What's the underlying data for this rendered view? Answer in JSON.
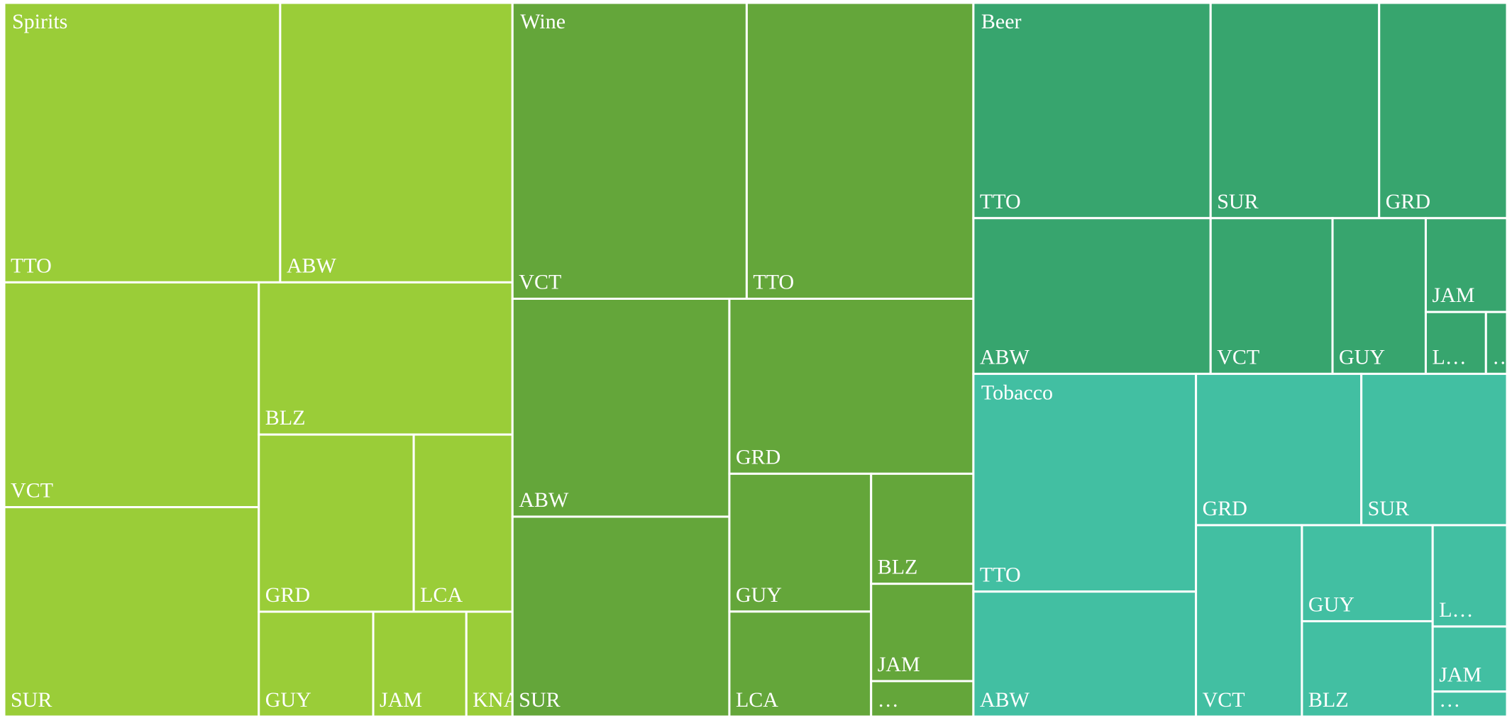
{
  "chart_data": {
    "type": "treemap",
    "series": [
      {
        "name": "Spirits",
        "color": "#9acd38",
        "labels": [
          "TTO",
          "ABW",
          "VCT",
          "SUR",
          "BLZ",
          "GRD",
          "LCA",
          "GUY",
          "JAM",
          "KNA"
        ],
        "values": [
          82.9,
          69.8,
          61.5,
          57.3,
          41.5,
          29.5,
          18.8,
          12.9,
          10.5,
          5.2
        ]
      },
      {
        "name": "Wine",
        "color": "#64a63a",
        "labels": [
          "VCT",
          "TTO",
          "ABW",
          "SUR",
          "GRD",
          "GUY",
          "LCA",
          "BLZ",
          "JAM",
          "…"
        ],
        "values": [
          74.5,
          72.1,
          50.8,
          46.6,
          45.9,
          21.0,
          16.0,
          12.1,
          10.7,
          3.9
        ]
      },
      {
        "name": "Beer",
        "color": "#37a56e",
        "labels": [
          "TTO",
          "ABW",
          "SUR",
          "GRD",
          "VCT",
          "GUY",
          "JAM",
          "L…",
          "…"
        ],
        "values": [
          54.9,
          39.7,
          39.0,
          29.6,
          20.4,
          15.6,
          8.2,
          4.0,
          1.4
        ]
      },
      {
        "name": "Tobacco",
        "color": "#42bfa2",
        "labels": [
          "TTO",
          "ABW",
          "GRD",
          "SUR",
          "VCT",
          "GUY",
          "BLZ",
          "L…",
          "JAM",
          "…"
        ],
        "values": [
          52.1,
          29.9,
          26.9,
          23.7,
          21.8,
          13.5,
          13.4,
          8.1,
          5.2,
          2.0
        ]
      }
    ]
  }
}
